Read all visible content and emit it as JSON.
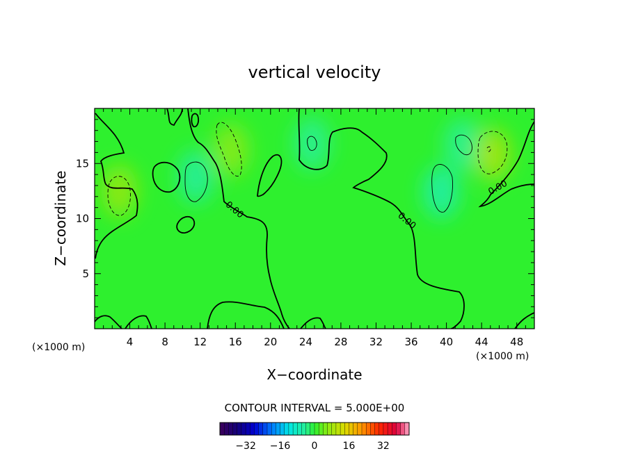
{
  "chart_data": {
    "type": "contour",
    "title": "vertical velocity",
    "xlabel": "X−coordinate",
    "ylabel": "Z−coordinate",
    "x_unit_left": "(×1000 m)",
    "x_unit_right": "(×1000 m)",
    "xlim": [
      0,
      50
    ],
    "ylim": [
      0,
      20
    ],
    "x_ticks": [
      4,
      8,
      12,
      16,
      20,
      24,
      28,
      32,
      36,
      40,
      44,
      48
    ],
    "x_tick_labels": [
      "4",
      "8",
      "12",
      "16",
      "20",
      "24",
      "28",
      "32",
      "36",
      "40",
      "44",
      "48"
    ],
    "y_ticks": [
      5,
      10,
      15
    ],
    "y_tick_labels": [
      "5",
      "10",
      "15"
    ],
    "contour_interval_text": "CONTOUR INTERVAL = 5.000E+00",
    "zero_contour_label": "0.00",
    "zero_label_positions": [
      {
        "x": 15.7,
        "y": 10.6
      },
      {
        "x": 35.3,
        "y": 9.6
      },
      {
        "x": 46.0,
        "y": 12.6
      }
    ],
    "colorbar": {
      "range": [
        -44,
        44
      ],
      "ticks": [
        -32,
        -16,
        0,
        16,
        32
      ],
      "tick_labels": [
        "−32",
        "−16",
        "0",
        "16",
        "32"
      ]
    },
    "features": [
      {
        "x": 2.8,
        "z": 12.5,
        "value": 7,
        "kind": "updraft"
      },
      {
        "x": 11.5,
        "z": 13.8,
        "value": -5,
        "kind": "downdraft"
      },
      {
        "x": 15.5,
        "z": 16.2,
        "value": 6,
        "kind": "updraft"
      },
      {
        "x": 24.7,
        "z": 16.8,
        "value": -4,
        "kind": "downdraft"
      },
      {
        "x": 39.4,
        "z": 12.4,
        "value": -6,
        "kind": "downdraft"
      },
      {
        "x": 41.8,
        "z": 16.7,
        "value": -4,
        "kind": "downdraft"
      },
      {
        "x": 45.3,
        "z": 15.8,
        "value": 9,
        "kind": "updraft"
      }
    ],
    "colors": {
      "background_field": "#2ef02e",
      "zero_contour": "#000000"
    }
  }
}
